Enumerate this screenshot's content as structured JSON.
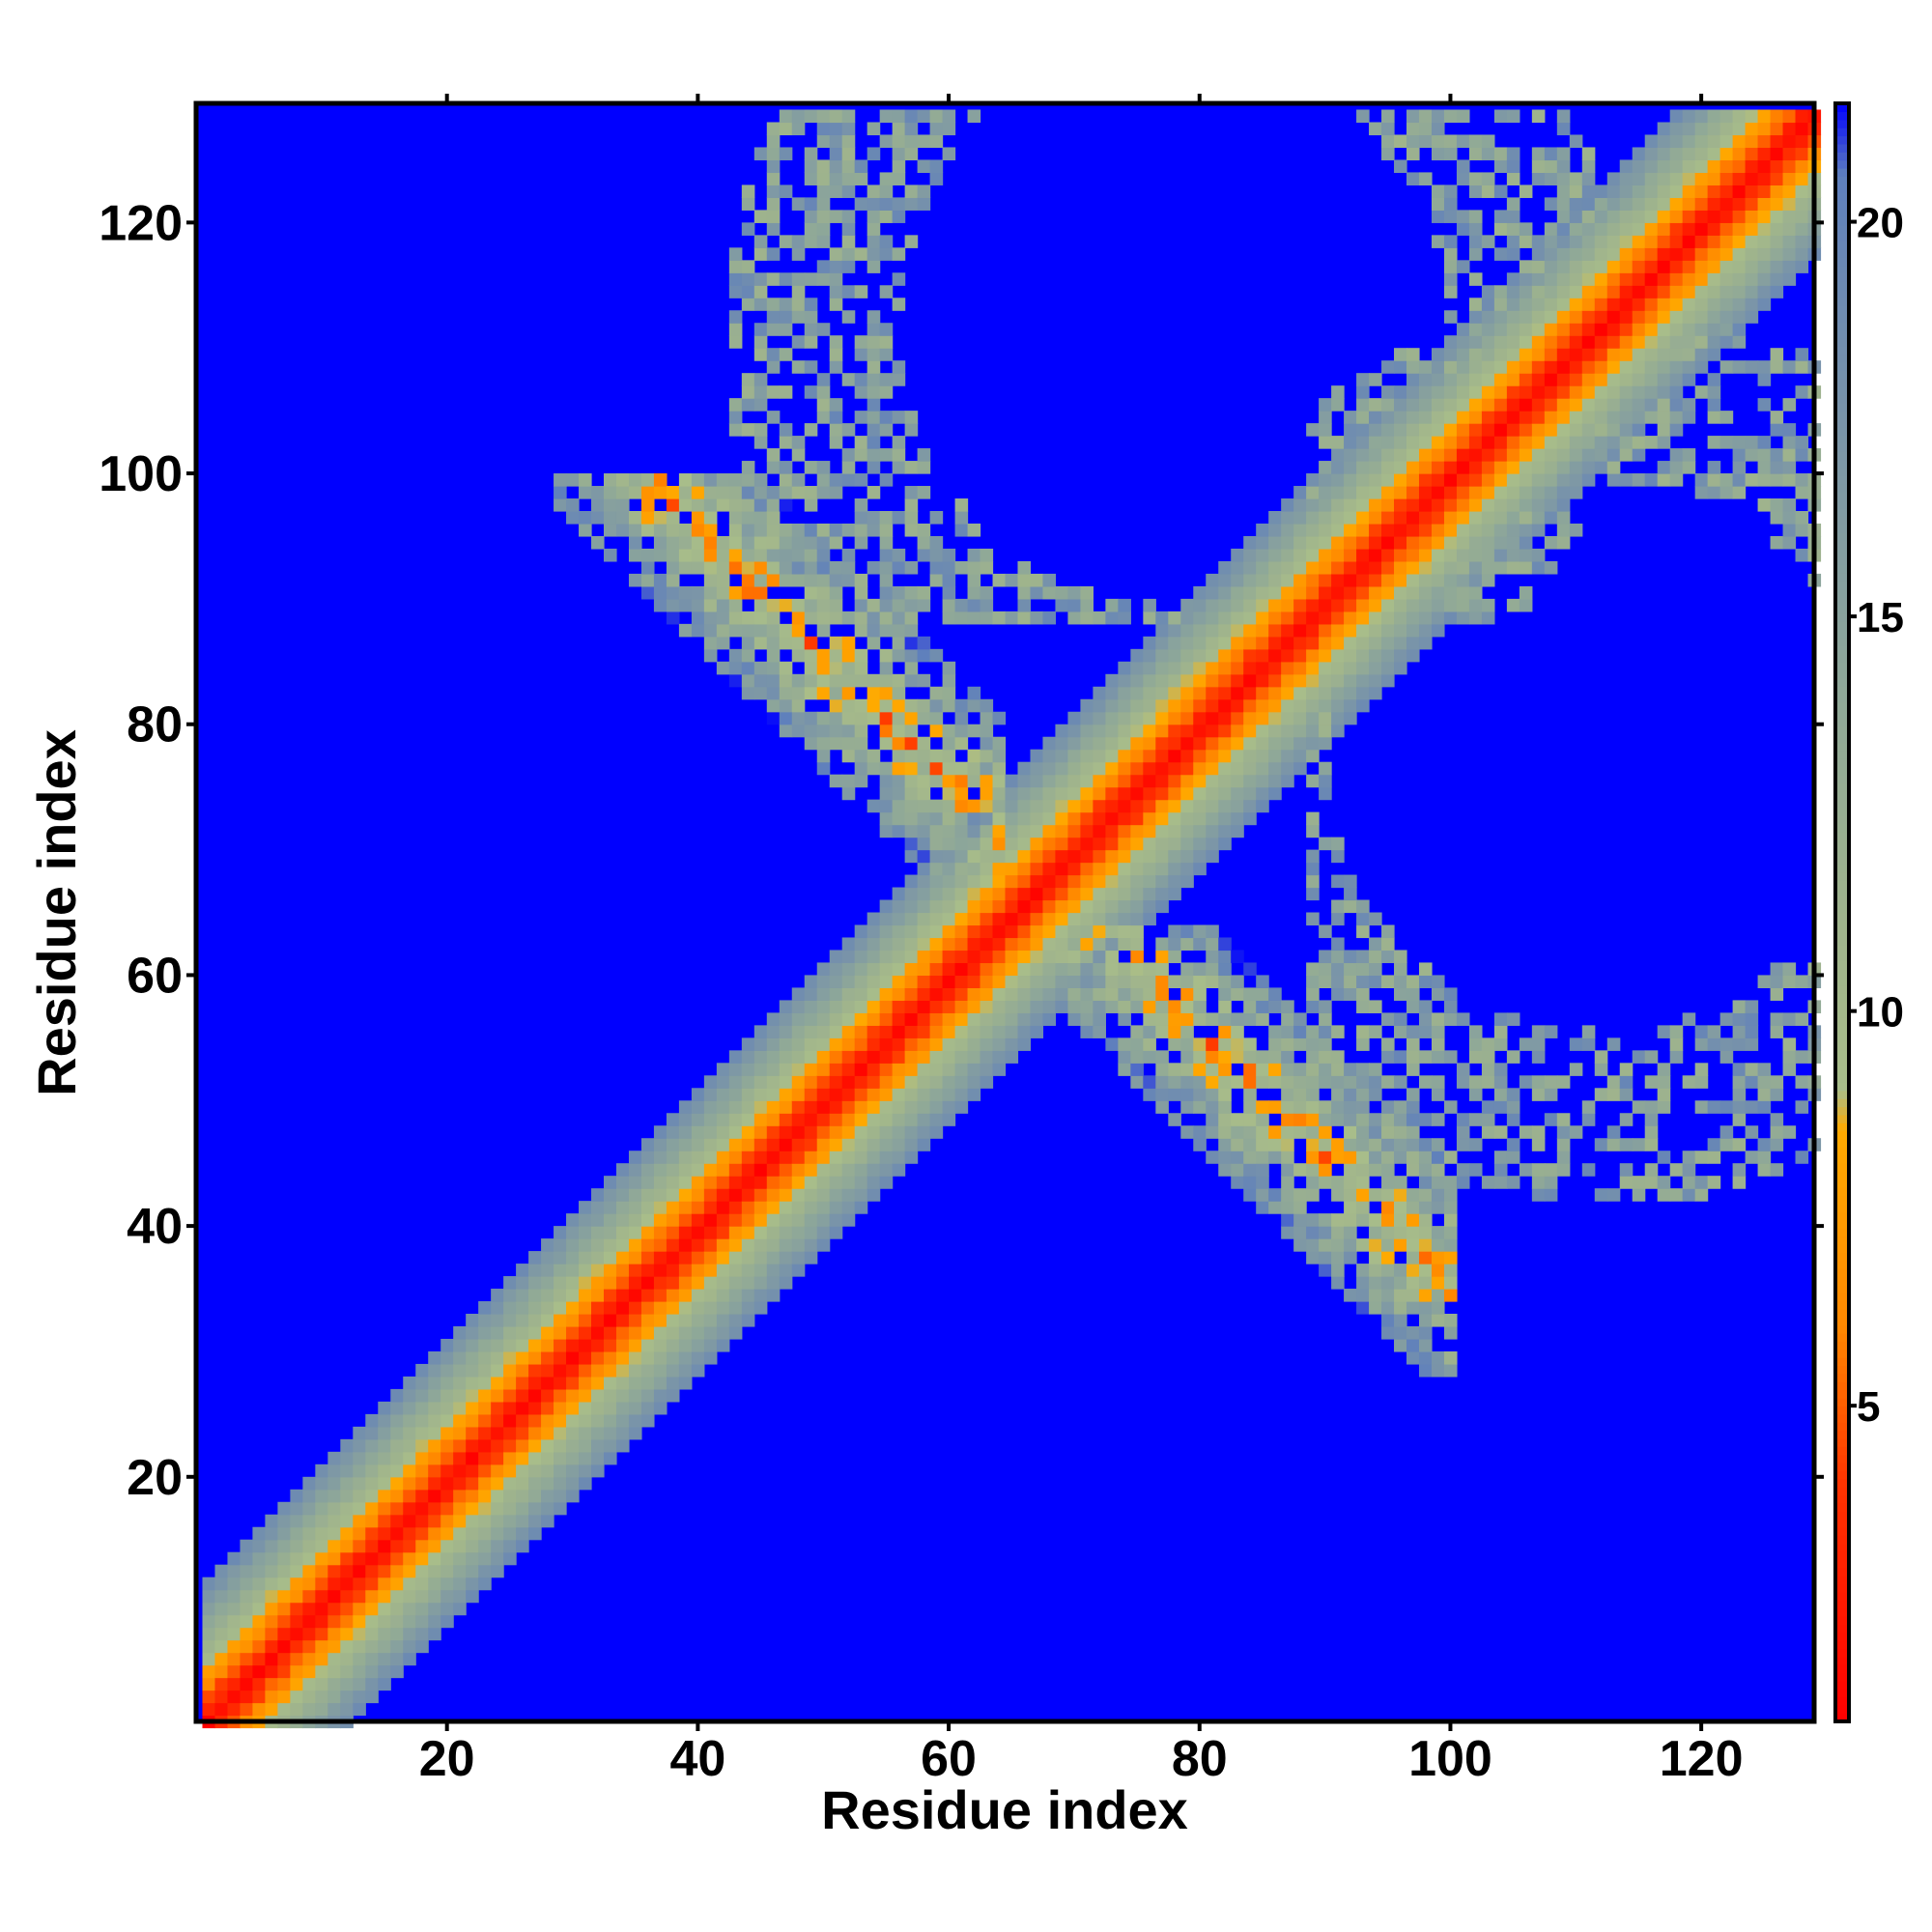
{
  "chart_data": {
    "type": "heatmap",
    "title": "",
    "xlabel": "Residue index",
    "ylabel": "Residue index",
    "n_residues": 129,
    "xlim": [
      1,
      129
    ],
    "ylim": [
      1,
      129
    ],
    "x_ticks": [
      20,
      40,
      60,
      80,
      100,
      120
    ],
    "y_ticks": [
      20,
      40,
      60,
      80,
      100,
      120
    ],
    "x_tick_labels": [
      "20",
      "40",
      "60",
      "80",
      "100",
      "120"
    ],
    "y_tick_labels": [
      "20",
      "40",
      "60",
      "80",
      "100",
      "120"
    ],
    "colorbar": {
      "range": [
        1,
        21.5
      ],
      "ticks": [
        5,
        10,
        15,
        20
      ],
      "tick_labels": [
        "5",
        "10",
        "15",
        "20"
      ],
      "stops": [
        {
          "value": 1,
          "color": "#ff0000"
        },
        {
          "value": 4,
          "color": "#ff3300"
        },
        {
          "value": 6,
          "color": "#ff8800"
        },
        {
          "value": 8.5,
          "color": "#ffaa00"
        },
        {
          "value": 9,
          "color": "#a8bd8a"
        },
        {
          "value": 11,
          "color": "#a0b48c"
        },
        {
          "value": 14,
          "color": "#8fa898"
        },
        {
          "value": 17,
          "color": "#7d97a6"
        },
        {
          "value": 19.5,
          "color": "#6a88b4"
        },
        {
          "value": 20.6,
          "color": "#5e7fbd"
        },
        {
          "value": 21.5,
          "color": "#0000ff"
        }
      ]
    },
    "background_value": 22,
    "background_color": "#0000ff",
    "diagonal_band": {
      "core_width": 3,
      "band_width": 11
    },
    "contact_regions": [
      {
        "name": "antiparallel-upper-left",
        "x_range": [
          29,
          64
        ],
        "y_range": [
          64,
          100
        ],
        "anti_diagonal_sum": 136,
        "min_value": 4
      },
      {
        "name": "antiparallel-lower-right",
        "x_range": [
          64,
          100
        ],
        "y_range": [
          29,
          64
        ],
        "anti_diagonal_sum": 136,
        "min_value": 4
      },
      {
        "name": "sparse-ring-top",
        "x_range": [
          38,
          112
        ],
        "y_range": [
          88,
          129
        ],
        "min_value": 11
      },
      {
        "name": "sparse-ring-right",
        "x_range": [
          88,
          129
        ],
        "y_range": [
          38,
          112
        ],
        "min_value": 11
      }
    ]
  }
}
